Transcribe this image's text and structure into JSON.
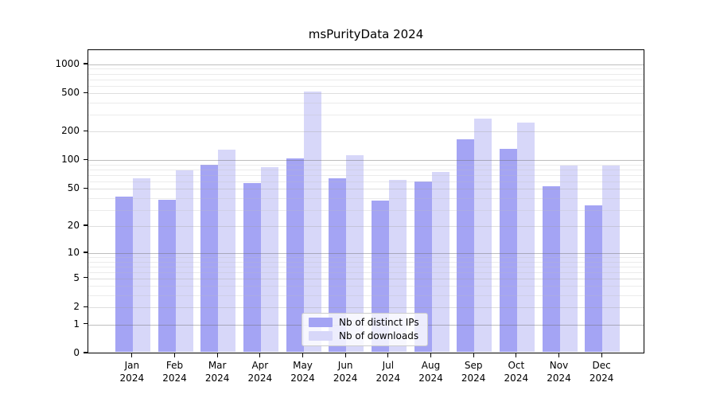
{
  "title": "msPurityData 2024",
  "chart_data": {
    "type": "bar",
    "title": "msPurityData 2024",
    "categories": [
      "Jan",
      "Feb",
      "Mar",
      "Apr",
      "May",
      "Jun",
      "Jul",
      "Aug",
      "Sep",
      "Oct",
      "Nov",
      "Dec"
    ],
    "x_sublabel_year": "2024",
    "series": [
      {
        "name": "Nb of distinct IPs",
        "color": "#a4a4f4",
        "values": [
          40,
          37,
          86,
          55,
          100,
          62,
          36,
          58,
          160,
          128,
          51,
          32
        ]
      },
      {
        "name": "Nb of downloads",
        "color": "#d7d7f9",
        "values": [
          62,
          75,
          125,
          82,
          500,
          110,
          60,
          73,
          265,
          240,
          85,
          85
        ]
      }
    ],
    "xlabel": "",
    "ylabel": "",
    "y_scale": "log1p",
    "y_ticks": [
      0,
      1,
      2,
      5,
      10,
      20,
      50,
      100,
      200,
      500,
      1000
    ],
    "ylim": [
      0,
      1450
    ],
    "grid": true,
    "legend_position": "lower-center",
    "colors": {
      "decade_gridline": "rgba(110,110,110,0.45)",
      "mid_gridline": "rgba(160,160,160,0.35)",
      "minor_gridline": "rgba(190,190,190,0.30)",
      "axis": "#000000",
      "background": "#ffffff"
    }
  }
}
